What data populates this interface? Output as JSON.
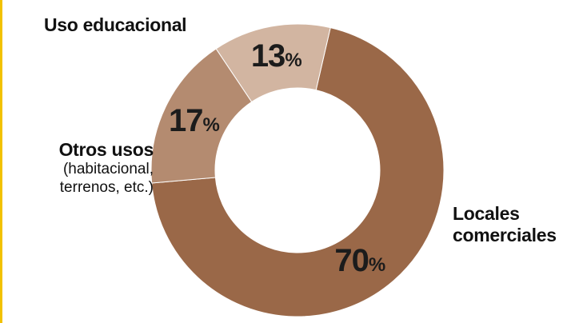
{
  "chart_data": {
    "type": "pie",
    "variant": "donut",
    "slices": [
      {
        "label": "Locales comerciales",
        "label_lines": [
          "Locales",
          "comerciales"
        ],
        "note_lines": [],
        "value": 70,
        "value_label": "70",
        "unit": "%",
        "color": "#9a6848"
      },
      {
        "label": "Otros usos",
        "label_lines": [
          "Otros usos"
        ],
        "note_lines": [
          "(habitacional,",
          "terrenos, etc.)"
        ],
        "value": 17,
        "value_label": "17",
        "unit": "%",
        "color": "#b48b70"
      },
      {
        "label": "Uso educacional",
        "label_lines": [
          "Uso educacional"
        ],
        "note_lines": [],
        "value": 13,
        "value_label": "13",
        "unit": "%",
        "color": "#d2b5a1"
      }
    ],
    "start_angle_deg": 13,
    "direction": "clockwise",
    "legend": "none"
  },
  "colors": {
    "accent_rule": "#f2c200",
    "background": "#ffffff",
    "text": "#111111"
  }
}
